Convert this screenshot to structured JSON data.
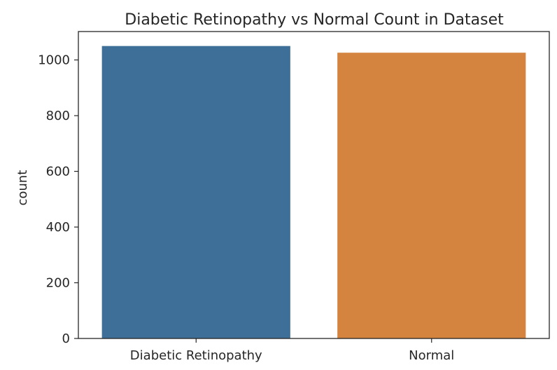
{
  "chart_data": {
    "type": "bar",
    "title": "Diabetic Retinopathy vs Normal Count in Dataset",
    "xlabel": "",
    "ylabel": "count",
    "categories": [
      "Diabetic Retinopathy",
      "Normal"
    ],
    "values": [
      1050,
      1026
    ],
    "colors": [
      "#3d6f98",
      "#d4843f"
    ],
    "ylim": [
      0,
      1102
    ],
    "yticks": [
      0,
      200,
      400,
      600,
      800,
      1000
    ],
    "grid": false,
    "legend": "none"
  }
}
